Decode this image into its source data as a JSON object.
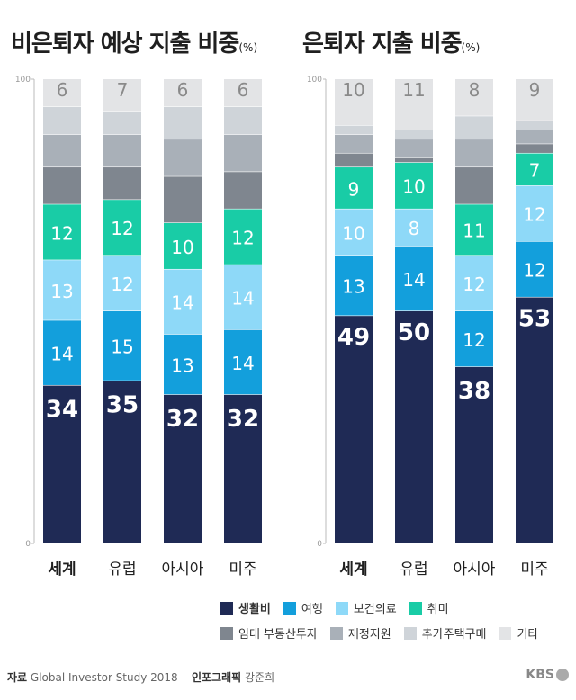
{
  "titles": {
    "left": "비은퇴자 예상 지출 비중",
    "right": "은퇴자 지출 비중",
    "unit": "(%)"
  },
  "legend": [
    {
      "label": "생활비",
      "color": "#1f2a55"
    },
    {
      "label": "여행",
      "color": "#139fdc"
    },
    {
      "label": "보건의료",
      "color": "#8ed9f8"
    },
    {
      "label": "취미",
      "color": "#19cca6"
    },
    {
      "label": "임대 부동산투자",
      "color": "#7f868f"
    },
    {
      "label": "재정지원",
      "color": "#a9b0b8"
    },
    {
      "label": "추가주택구매",
      "color": "#cfd4d9"
    },
    {
      "label": "기타",
      "color": "#e3e4e6"
    }
  ],
  "footer": {
    "source_label": "자료",
    "source": "Global Investor Study 2018",
    "credit_label": "인포그래픽",
    "credit": "강준희",
    "logo": "KBS"
  },
  "chart_data": [
    {
      "type": "bar",
      "stacked": true,
      "title": "비은퇴자 예상 지출 비중",
      "unit": "(%)",
      "categories": [
        "세계",
        "유럽",
        "아시아",
        "미주"
      ],
      "ylim": [
        0,
        100
      ],
      "yticks": [
        "0",
        "100"
      ],
      "series": [
        {
          "name": "생활비",
          "values": [
            34,
            35,
            32,
            32
          ]
        },
        {
          "name": "여행",
          "values": [
            14,
            15,
            13,
            14
          ]
        },
        {
          "name": "보건의료",
          "values": [
            13,
            12,
            14,
            14
          ]
        },
        {
          "name": "취미",
          "values": [
            12,
            12,
            10,
            12
          ]
        },
        {
          "name": "임대 부동산투자",
          "values": [
            8,
            7,
            10,
            8
          ]
        },
        {
          "name": "재정지원",
          "values": [
            7,
            7,
            8,
            8
          ]
        },
        {
          "name": "추가주택구매",
          "values": [
            6,
            5,
            7,
            6
          ]
        },
        {
          "name": "기타",
          "values": [
            6,
            7,
            6,
            6
          ]
        }
      ],
      "labeled_series": [
        "생활비",
        "여행",
        "보건의료",
        "취미",
        "기타"
      ]
    },
    {
      "type": "bar",
      "stacked": true,
      "title": "은퇴자 지출 비중",
      "unit": "(%)",
      "categories": [
        "세계",
        "유럽",
        "아시아",
        "미주"
      ],
      "ylim": [
        0,
        100
      ],
      "yticks": [
        "0",
        "100"
      ],
      "series": [
        {
          "name": "생활비",
          "values": [
            49,
            50,
            38,
            53
          ]
        },
        {
          "name": "여행",
          "values": [
            13,
            14,
            12,
            12
          ]
        },
        {
          "name": "보건의료",
          "values": [
            10,
            8,
            12,
            12
          ]
        },
        {
          "name": "취미",
          "values": [
            9,
            10,
            11,
            7
          ]
        },
        {
          "name": "임대 부동산투자",
          "values": [
            3,
            1,
            8,
            2
          ]
        },
        {
          "name": "재정지원",
          "values": [
            4,
            4,
            6,
            3
          ]
        },
        {
          "name": "추가주택구매",
          "values": [
            2,
            2,
            5,
            2
          ]
        },
        {
          "name": "기타",
          "values": [
            10,
            11,
            8,
            9
          ]
        }
      ],
      "labeled_series": [
        "생활비",
        "여행",
        "보건의료",
        "취미",
        "기타"
      ]
    }
  ]
}
